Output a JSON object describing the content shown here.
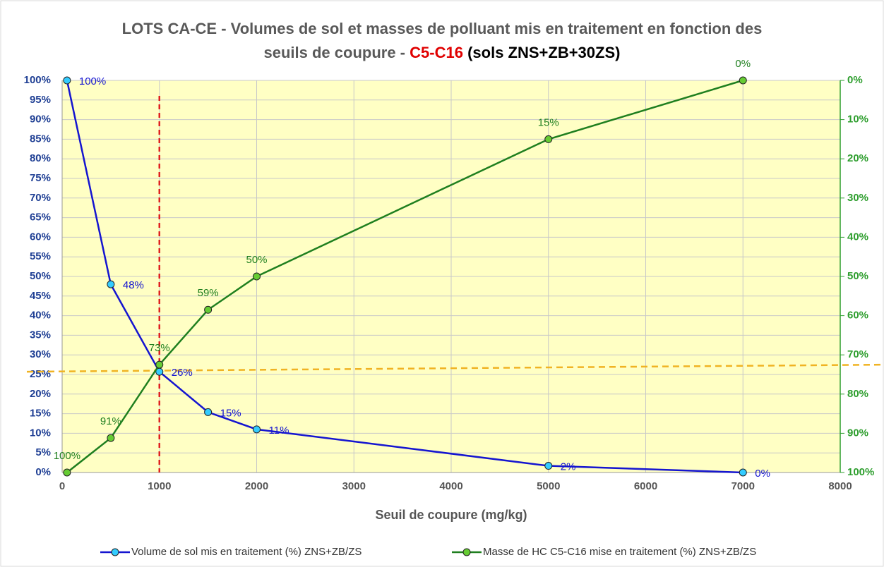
{
  "chart_data": {
    "type": "line",
    "title_lines": [
      "LOTS CA-CE - Volumes de sol et masses de polluant mis en traitement en fonction des",
      "seuils de coupure -"
    ],
    "title_highlight": "C5-C16",
    "title_suffix": "(sols ZNS+ZB+30ZS)",
    "x_label": "Seuil de coupure (mg/kg)",
    "x": [
      50,
      500,
      1000,
      1500,
      2000,
      5000,
      7000
    ],
    "xlim": [
      0,
      8000
    ],
    "xticks": [
      0,
      1000,
      2000,
      3000,
      4000,
      5000,
      6000,
      7000,
      8000
    ],
    "ylim": [
      0,
      100
    ],
    "yticks": [
      {
        "value": 0,
        "label": "0%"
      },
      {
        "value": 5,
        "label": "5%"
      },
      {
        "value": 10,
        "label": "10%"
      },
      {
        "value": 15,
        "label": "15%"
      },
      {
        "value": 20,
        "label": "20%"
      },
      {
        "value": 25,
        "label": "25%"
      },
      {
        "value": 30,
        "label": "30%"
      },
      {
        "value": 35,
        "label": "35%"
      },
      {
        "value": 40,
        "label": "40%"
      },
      {
        "value": 45,
        "label": "45%"
      },
      {
        "value": 50,
        "label": "50%"
      },
      {
        "value": 55,
        "label": "55%"
      },
      {
        "value": 60,
        "label": "60%"
      },
      {
        "value": 65,
        "label": "65%"
      },
      {
        "value": 70,
        "label": "70%"
      },
      {
        "value": 75,
        "label": "75%"
      },
      {
        "value": 80,
        "label": "80%"
      },
      {
        "value": 85,
        "label": "85%"
      },
      {
        "value": 90,
        "label": "90%"
      },
      {
        "value": 95,
        "label": "95%"
      },
      {
        "value": 100,
        "label": "100%"
      }
    ],
    "y2lim": [
      100,
      0
    ],
    "y2ticks": [
      {
        "value": 0,
        "label": "0%"
      },
      {
        "value": 10,
        "label": "10%"
      },
      {
        "value": 20,
        "label": "20%"
      },
      {
        "value": 30,
        "label": "30%"
      },
      {
        "value": 40,
        "label": "40%"
      },
      {
        "value": 50,
        "label": "50%"
      },
      {
        "value": 60,
        "label": "60%"
      },
      {
        "value": 70,
        "label": "70%"
      },
      {
        "value": 80,
        "label": "80%"
      },
      {
        "value": 90,
        "label": "90%"
      },
      {
        "value": 100,
        "label": "100%"
      }
    ],
    "grid": true,
    "series": [
      {
        "name": "Volume de sol mis en traitement (%) ZNS+ZB/ZS",
        "color": "#1515d0",
        "marker_color": "#33ccff",
        "values": [
          100,
          48,
          25.7,
          15.4,
          11,
          1.7,
          0
        ],
        "value_labels": [
          "100%",
          "48%",
          "26%",
          "15%",
          "11%",
          "2%",
          "0%"
        ]
      },
      {
        "name": "Masse de HC C5-C16 mise en traitement (%) ZNS+ZB/ZS",
        "color": "#1f7f1f",
        "marker_color": "#66cc33",
        "axis": "y2",
        "values": [
          100,
          91.2,
          72.5,
          58.5,
          50,
          15,
          0
        ],
        "value_labels": [
          "100%",
          "91%",
          "73%",
          "59%",
          "50%",
          "15%",
          "0%"
        ]
      }
    ],
    "reference_lines": [
      {
        "axis": "x",
        "value": 1000,
        "color": "#e02020"
      },
      {
        "axis": "y",
        "from": 25.7,
        "to": 27.5,
        "color": "#f0b323"
      }
    ]
  }
}
